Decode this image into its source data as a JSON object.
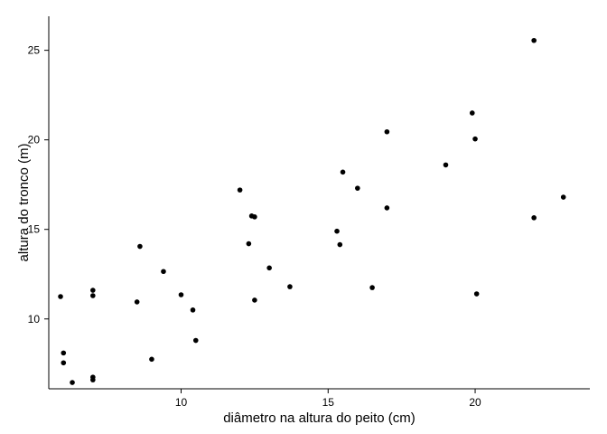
{
  "chart_data": {
    "type": "scatter",
    "xlabel": "diâmetro na altura do peito (cm)",
    "ylabel": "altura do tronco (m)",
    "xlim": [
      5.5,
      23.9
    ],
    "ylim": [
      6.1,
      26.9
    ],
    "xticks": [
      10,
      15,
      20
    ],
    "yticks": [
      10,
      15,
      20,
      25
    ],
    "grid": false,
    "legend": "none",
    "point_color": "#000000",
    "series": [
      {
        "points": [
          {
            "x": 5.9,
            "y": 11.25
          },
          {
            "x": 6.0,
            "y": 8.1
          },
          {
            "x": 6.0,
            "y": 7.55
          },
          {
            "x": 6.3,
            "y": 6.45
          },
          {
            "x": 7.0,
            "y": 11.6
          },
          {
            "x": 7.0,
            "y": 11.3
          },
          {
            "x": 7.0,
            "y": 6.75
          },
          {
            "x": 7.0,
            "y": 6.6
          },
          {
            "x": 8.5,
            "y": 10.95
          },
          {
            "x": 8.6,
            "y": 14.05
          },
          {
            "x": 9.0,
            "y": 7.75
          },
          {
            "x": 9.4,
            "y": 12.65
          },
          {
            "x": 10.0,
            "y": 11.35
          },
          {
            "x": 10.4,
            "y": 10.5
          },
          {
            "x": 10.5,
            "y": 8.8
          },
          {
            "x": 12.0,
            "y": 17.2
          },
          {
            "x": 12.3,
            "y": 14.2
          },
          {
            "x": 12.4,
            "y": 15.75
          },
          {
            "x": 12.5,
            "y": 15.7
          },
          {
            "x": 12.5,
            "y": 11.05
          },
          {
            "x": 13.0,
            "y": 12.85
          },
          {
            "x": 13.7,
            "y": 11.8
          },
          {
            "x": 15.3,
            "y": 14.9
          },
          {
            "x": 15.4,
            "y": 14.15
          },
          {
            "x": 15.5,
            "y": 18.2
          },
          {
            "x": 16.0,
            "y": 17.3
          },
          {
            "x": 16.5,
            "y": 11.75
          },
          {
            "x": 17.0,
            "y": 20.45
          },
          {
            "x": 17.0,
            "y": 16.2
          },
          {
            "x": 19.0,
            "y": 18.6
          },
          {
            "x": 19.9,
            "y": 21.5
          },
          {
            "x": 20.0,
            "y": 20.05
          },
          {
            "x": 20.05,
            "y": 11.4
          },
          {
            "x": 22.0,
            "y": 25.55
          },
          {
            "x": 22.0,
            "y": 15.65
          },
          {
            "x": 23.0,
            "y": 16.8
          }
        ]
      }
    ]
  }
}
